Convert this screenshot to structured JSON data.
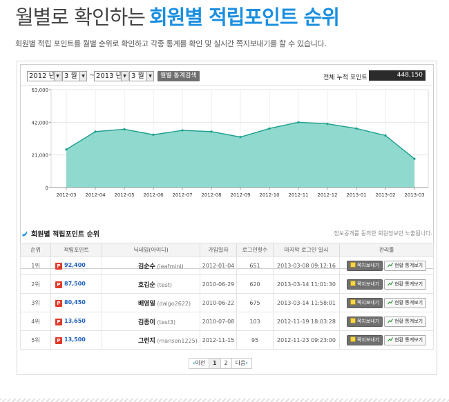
{
  "header": {
    "title_thin": "월별로 확인하는",
    "title_bold": "회원별 적립포인트 순위",
    "description": "회원별 적립 포인트를 월별 순위로 확인하고 각종 통계를 확인 및 실시간 쪽지보내기를 할 수 있습니다."
  },
  "toolbar": {
    "from_year": "2012 년",
    "from_month": "3 월",
    "separator": "~",
    "to_year": "2013 년",
    "to_month": "3 월",
    "search_label": "월별 통계검색",
    "total_label": "전체 누적 포인트",
    "total_value": "448,150"
  },
  "chart_data": {
    "type": "area",
    "x": [
      "2012-03",
      "2012-04",
      "2012-05",
      "2012-06",
      "2012-07",
      "2012-08",
      "2012-09",
      "2012-10",
      "2012-11",
      "2012-12",
      "2013-01",
      "2013-02",
      "2013-03"
    ],
    "values": [
      24500,
      36000,
      37500,
      34000,
      36800,
      36000,
      32500,
      38000,
      42000,
      41000,
      38000,
      33500,
      18500
    ],
    "yticks": [
      "0",
      "21,000",
      "42,000",
      "63,000"
    ],
    "ylim": [
      0,
      63000
    ],
    "colors": {
      "fill": "#90d9cf",
      "line": "#1a9e8c"
    }
  },
  "section": {
    "title": "회원별 적립포인트 순위",
    "note": "정보공개를 동의한 회원정보만 노출됩니다."
  },
  "table": {
    "headers": [
      "순위",
      "적립포인트",
      "닉네임(아이디)",
      "가입일자",
      "로그인횟수",
      "마지막 로그인 일시",
      "관리툴"
    ],
    "rows": [
      {
        "rank": "1위",
        "points": "92,400",
        "name": "김순수",
        "id": "(leafmini)",
        "joined": "2012-01-04",
        "logins": "651",
        "last": "2013-03-08 09:12:16"
      },
      {
        "rank": "2위",
        "points": "87,500",
        "name": "호김순",
        "id": "(test)",
        "joined": "2010-06-29",
        "logins": "620",
        "last": "2013-03-14 11:01:30"
      },
      {
        "rank": "3위",
        "points": "80,450",
        "name": "배영일",
        "id": "(dalgo2622)",
        "joined": "2010-06-22",
        "logins": "675",
        "last": "2013-03-14 11:58:01"
      },
      {
        "rank": "4위",
        "points": "13,650",
        "name": "김종이",
        "id": "(test3)",
        "joined": "2010-07-08",
        "logins": "103",
        "last": "2012-11-19 18:03:28"
      },
      {
        "rank": "5위",
        "points": "13,500",
        "name": "그런지",
        "id": "(manson1225)",
        "joined": "2012-11-15",
        "logins": "95",
        "last": "2012-11-23 09:23:00"
      }
    ],
    "btn_message": "쪽지보내기",
    "btn_stats": "현황 통계보기"
  },
  "pager": {
    "prev": "이전",
    "pages": [
      "1",
      "2"
    ],
    "next": "다음"
  }
}
